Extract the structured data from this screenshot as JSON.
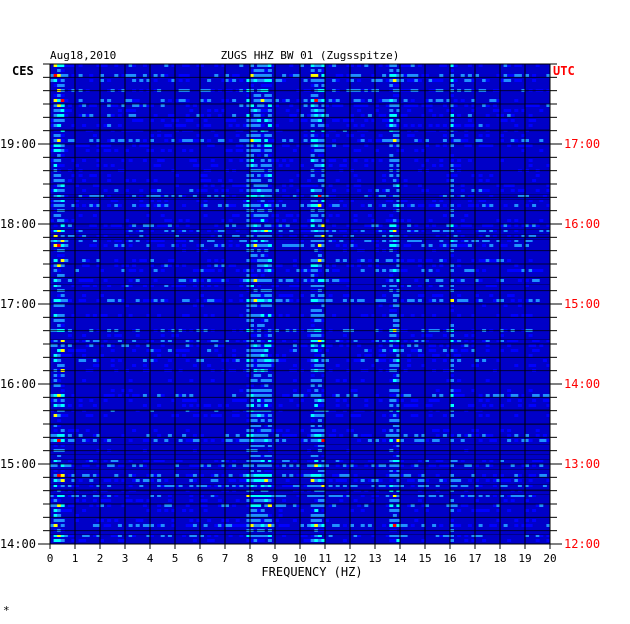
{
  "chart_data": {
    "type": "heatmap",
    "date": "Aug18,2010",
    "title": "ZUGS HHZ BW 01 (Zugsspitze)",
    "xlabel": "FREQUENCY (HZ)",
    "xlim": [
      0,
      20
    ],
    "x_ticks": [
      "0",
      "1",
      "2",
      "3",
      "4",
      "5",
      "6",
      "7",
      "8",
      "9",
      "10",
      "11",
      "12",
      "13",
      "14",
      "15",
      "16",
      "17",
      "18",
      "19",
      "20"
    ],
    "left_axis_label": "CES",
    "right_axis_label": "UTC",
    "left_time_ticks": [
      "19:00",
      "18:00",
      "17:00",
      "16:00",
      "15:00",
      "14:00"
    ],
    "right_time_ticks": [
      "17:00",
      "16:00",
      "15:00",
      "14:00",
      "13:00",
      "12:00"
    ],
    "time_range_utc": [
      "12:00",
      "18:00"
    ],
    "grid": true,
    "colormap": [
      "#00008b",
      "#0000ff",
      "#1e90ff",
      "#00ffff",
      "#ffff00",
      "#ff0000"
    ],
    "background_color": "#0000c8",
    "right_label_color": "#ff0000",
    "energy_bands": [
      {
        "f_min": 0.1,
        "f_max": 0.6,
        "intensity": 0.75
      },
      {
        "f_min": 7.8,
        "f_max": 8.8,
        "intensity": 0.6
      },
      {
        "f_min": 10.5,
        "f_max": 11.0,
        "intensity": 0.65
      },
      {
        "f_min": 13.6,
        "f_max": 14.0,
        "intensity": 0.6
      },
      {
        "f_min": 16.0,
        "f_max": 16.1,
        "intensity": 0.5
      }
    ]
  },
  "footer_mark": "*"
}
